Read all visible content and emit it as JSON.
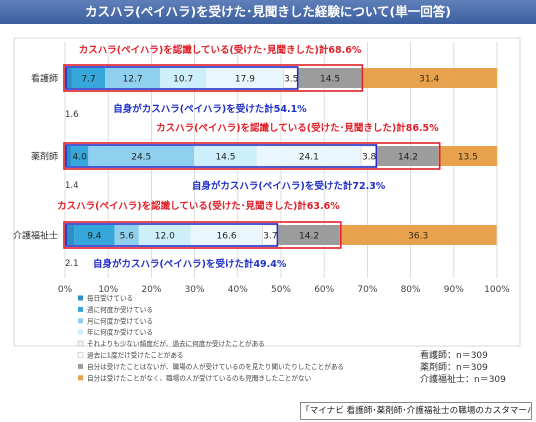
{
  "title": "カスハラ(ペイハラ)を受けた･見聞きした経験について(単一回答)",
  "footer_source": "「マイナビ 看護師･薬剤師･介護福祉士の職場のカスタマーハラスメントに関する実態調査」",
  "sample_sizes": [
    "看護師：n＝309",
    "薬剤師：n＝309",
    "介護福祉士：n＝309"
  ],
  "colors": {
    "title_bg": "#4a6aa8",
    "annotation_red": "#e0202a",
    "annotation_blue": "#2030c8",
    "segments": [
      "#2f8fc4",
      "#36a7da",
      "#8fd0ef",
      "#cdeefb",
      "#e9f7fd",
      "#ffffff",
      "#9c9c9c",
      "#e8a24e"
    ]
  },
  "chart_data": {
    "type": "bar",
    "orientation": "horizontal",
    "stacked": true,
    "title": "カスハラ(ペイハラ)を受けた･見聞きした経験について(単一回答)",
    "categories": [
      "看護師",
      "薬剤師",
      "介護福祉士"
    ],
    "xlim": [
      0,
      100
    ],
    "x_ticks": [
      "0%",
      "10%",
      "20%",
      "30%",
      "40%",
      "50%",
      "60%",
      "70%",
      "80%",
      "90%",
      "100%"
    ],
    "grid": true,
    "legend_position": "bottom-left",
    "series": [
      {
        "name": "毎日受けている",
        "values": [
          1.6,
          1.4,
          2.1
        ],
        "labels": [
          "1.6",
          "1.4",
          "2.1"
        ]
      },
      {
        "name": "週に何度か受けている",
        "values": [
          7.7,
          4.0,
          9.4
        ],
        "labels": [
          "7.7",
          "4.0",
          "9.4"
        ]
      },
      {
        "name": "月に何度か受けている",
        "values": [
          12.7,
          24.5,
          5.6
        ],
        "labels": [
          "12.7",
          "24.5",
          "5.6"
        ]
      },
      {
        "name": "年に何度か受けている",
        "values": [
          10.7,
          14.5,
          12.0
        ],
        "labels": [
          "10.7",
          "14.5",
          "12.0"
        ]
      },
      {
        "name": "それよりも少ない頻度だが、過去に何度か受けたことがある",
        "values": [
          17.9,
          24.1,
          16.6
        ],
        "labels": [
          "17.9",
          "24.1",
          "16.6"
        ]
      },
      {
        "name": "過去に1度だけ受けたことがある",
        "values": [
          3.5,
          3.8,
          3.7
        ],
        "labels": [
          "3.5",
          "3.8",
          "3.7"
        ]
      },
      {
        "name": "自分は受けたことはないが、職場の人が受けているのを見たり聞いたりしたことがある",
        "values": [
          14.5,
          14.2,
          14.2
        ],
        "labels": [
          "14.5",
          "14.2",
          "14.2"
        ]
      },
      {
        "name": "自分は受けたことがなく、職場の人が受けているのも見聞きしたことがない",
        "values": [
          31.4,
          13.5,
          36.3
        ],
        "labels": [
          "31.4",
          "13.5",
          "36.3"
        ]
      }
    ],
    "annotations": [
      {
        "category": "看護師",
        "red_total": 68.6,
        "red_text": "カスハラ(ペイハラ)を認識している(受けた･見聞きした)計68.6%",
        "blue_total": 54.1,
        "blue_text": "自身がカスハラ(ペイハラ)を受けた計54.1%"
      },
      {
        "category": "薬剤師",
        "red_total": 86.5,
        "red_text": "カスハラ(ペイハラ)を認識している(受けた･見聞きした)計86.5%",
        "blue_total": 72.3,
        "blue_text": "自身がカスハラ(ペイハラ)を受けた計72.3%"
      },
      {
        "category": "介護福祉士",
        "red_total": 63.6,
        "red_text": "カスハラ(ペイハラ)を認識している(受けた･見聞きした)計63.6%",
        "blue_total": 49.4,
        "blue_text": "自身がカスハラ(ペイハラ)を受けた計49.4%"
      }
    ]
  }
}
